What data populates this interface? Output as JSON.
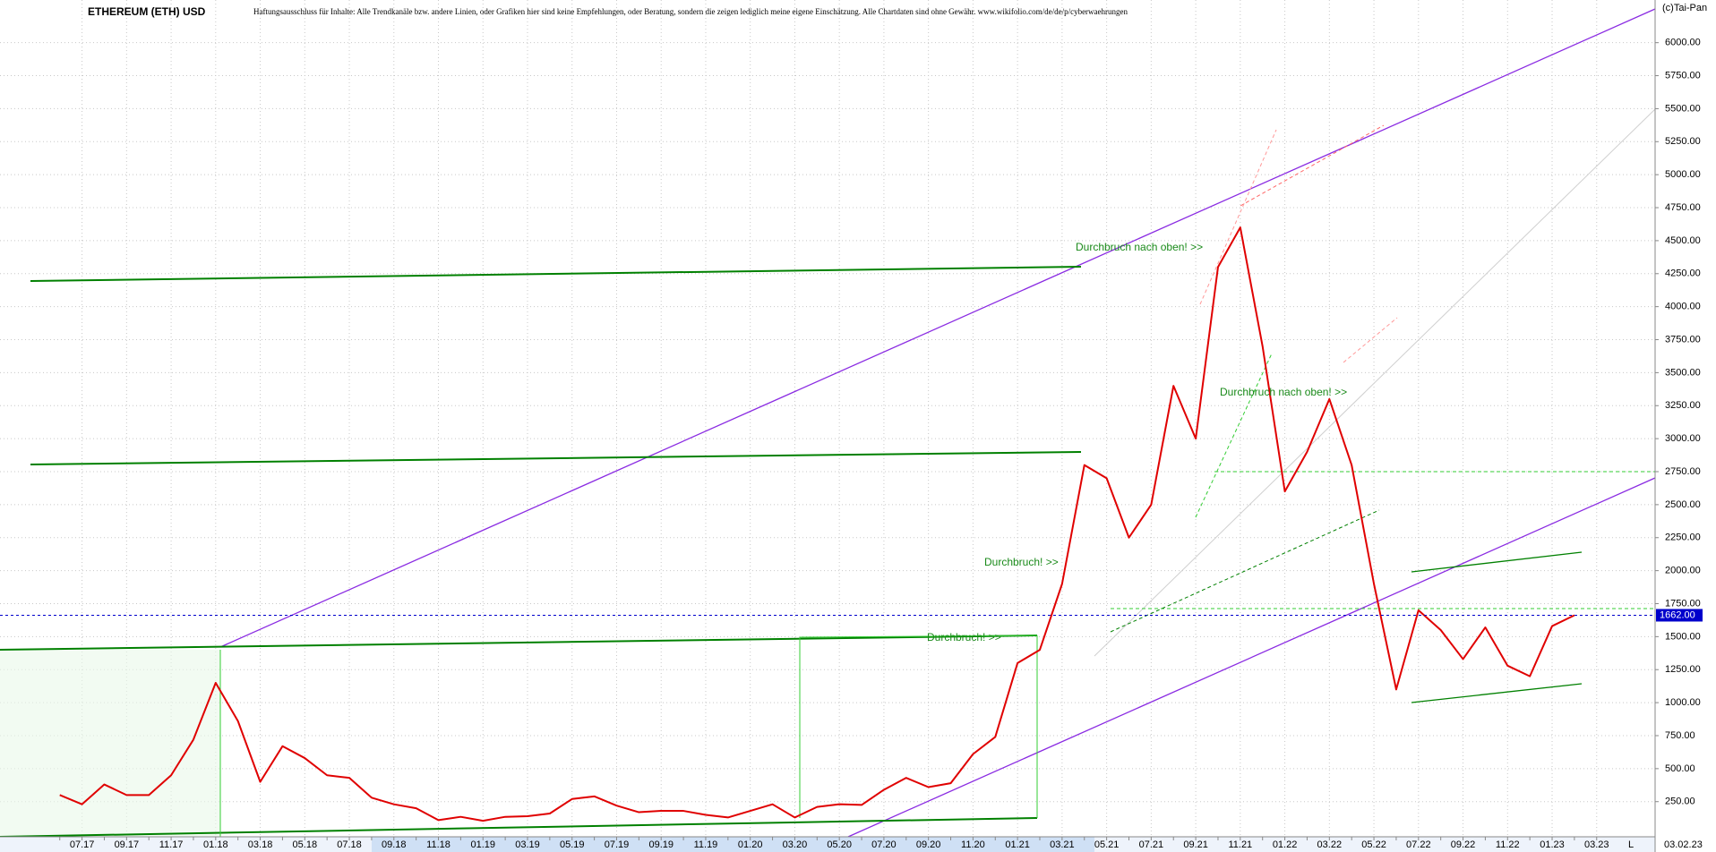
{
  "header": {
    "title": "ETHEREUM (ETH) USD",
    "disclaimer": "Haftungsausschluss für Inhalte: Alle Trendkanäle bzw. andere Linien, oder Grafiken hier sind keine Empfehlungen, oder Beratung, sondern die zeigen lediglich meine eigene Einschätzung. Alle Chartdaten sind ohne Gewähr.  www.wikifolio.com/de/de/p/cyberwaehrungen",
    "copyright": "(c)Tai-Pan",
    "date": "03.02.23",
    "mode": "L"
  },
  "chart_data": {
    "type": "line",
    "color": "#e00000",
    "categories": [
      null,
      "07.17",
      null,
      "09.17",
      null,
      "11.17",
      null,
      "01.18",
      null,
      "03.18",
      null,
      "05.18",
      null,
      "07.18",
      null,
      "09.18",
      null,
      "11.18",
      null,
      "01.19",
      null,
      "03.19",
      null,
      "05.19",
      null,
      "07.19",
      null,
      "09.19",
      null,
      "11.19",
      null,
      "01.20",
      null,
      "03.20",
      null,
      "05.20",
      null,
      "07.20",
      null,
      "09.20",
      null,
      "11.20",
      null,
      "01.21",
      null,
      "03.21",
      null,
      "05.21",
      null,
      "07.21",
      null,
      "09.21",
      null,
      "11.21",
      null,
      "01.22",
      null,
      "03.22",
      null,
      "05.22",
      null,
      "07.22",
      null,
      "09.22",
      null,
      "11.22",
      null,
      "01.23",
      null,
      "03.23"
    ],
    "values": [
      300,
      230,
      380,
      300,
      300,
      450,
      720,
      1150,
      860,
      400,
      670,
      580,
      450,
      430,
      280,
      230,
      200,
      110,
      135,
      105,
      135,
      140,
      160,
      270,
      290,
      220,
      170,
      180,
      180,
      150,
      130,
      180,
      230,
      130,
      210,
      230,
      225,
      340,
      430,
      360,
      390,
      610,
      740,
      1300,
      1400,
      1900,
      2800,
      2700,
      2250,
      2500,
      3400,
      3000,
      4300,
      4600,
      3700,
      2600,
      2900,
      3300,
      2800,
      1900,
      1100,
      1700,
      1550,
      1330,
      1570,
      1280,
      1200,
      1580,
      1662,
      null
    ],
    "ylim": [
      0,
      6250
    ],
    "yticks": [
      {
        "value": 250,
        "label": "250.00"
      },
      {
        "value": 500,
        "label": "500.00"
      },
      {
        "value": 750,
        "label": "750.00"
      },
      {
        "value": 1000,
        "label": "1000.00"
      },
      {
        "value": 1250,
        "label": "1250.00"
      },
      {
        "value": 1500,
        "label": "1500.00"
      },
      {
        "value": 1750,
        "label": "1750.00"
      },
      {
        "value": 2000,
        "label": "2000.00"
      },
      {
        "value": 2250,
        "label": "2250.00"
      },
      {
        "value": 2500,
        "label": "2500.00"
      },
      {
        "value": 2750,
        "label": "2750.00"
      },
      {
        "value": 3000,
        "label": "3000.00"
      },
      {
        "value": 3250,
        "label": "3250.00"
      },
      {
        "value": 3500,
        "label": "3500.00"
      },
      {
        "value": 3750,
        "label": "3750.00"
      },
      {
        "value": 4000,
        "label": "4000.00"
      },
      {
        "value": 4250,
        "label": "4250.00"
      },
      {
        "value": 4500,
        "label": "4500.00"
      },
      {
        "value": 4750,
        "label": "4750.00"
      },
      {
        "value": 5000,
        "label": "5000.00"
      },
      {
        "value": 5250,
        "label": "5250.00"
      },
      {
        "value": 5500,
        "label": "5500.00"
      },
      {
        "value": 5750,
        "label": "5750.00"
      },
      {
        "value": 6000,
        "label": "6000.00"
      }
    ],
    "grid": true,
    "current_price": {
      "value": 1662,
      "label": "1662.00"
    },
    "annotations": [
      "Durchbruch nach oben! >>",
      "Durchbruch nach oben! >>",
      "Durchbruch! >>",
      "Durchbruch! >>"
    ]
  }
}
